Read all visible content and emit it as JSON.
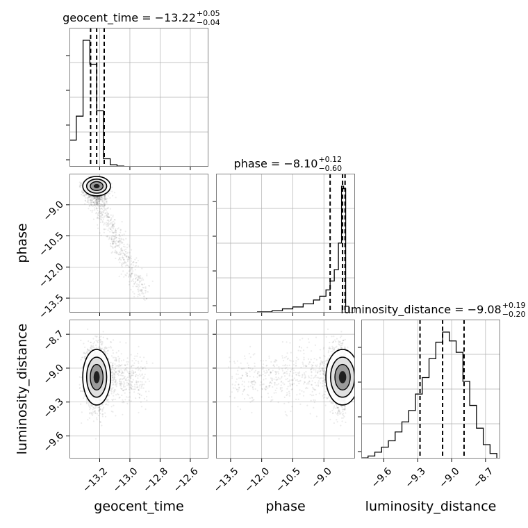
{
  "chart_data": {
    "type": "corner",
    "parameters": [
      "geocent_time",
      "phase",
      "luminosity_distance"
    ],
    "ranges": {
      "geocent_time": [
        -13.4,
        -12.48
      ],
      "phase": [
        -14.2,
        -7.5
      ],
      "luminosity_distance": [
        -9.8,
        -8.57
      ]
    },
    "ticks": {
      "geocent_time": [
        {
          "value": -13.2,
          "label": "−13.2"
        },
        {
          "value": -13.0,
          "label": "−13.0"
        },
        {
          "value": -12.8,
          "label": "−12.8"
        },
        {
          "value": -12.6,
          "label": "−12.6"
        }
      ],
      "phase": [
        {
          "value": -13.5,
          "label": "−13.5"
        },
        {
          "value": -12.0,
          "label": "−12.0"
        },
        {
          "value": -10.5,
          "label": "−10.5"
        },
        {
          "value": -9.0,
          "label": "−9.0"
        }
      ],
      "luminosity_distance": [
        {
          "value": -9.6,
          "label": "−9.6"
        },
        {
          "value": -9.3,
          "label": "−9.3"
        },
        {
          "value": -9.0,
          "label": "−9.0"
        },
        {
          "value": -8.7,
          "label": "−8.7"
        }
      ]
    },
    "axis_labels": {
      "geocent_time": "geocent_time",
      "phase": "phase",
      "luminosity_distance": "luminosity_distance"
    },
    "titles": [
      {
        "param": "geocent_time",
        "name": "geocent_time",
        "value": "−13.22",
        "plus": "+0.05",
        "minus": "−0.04"
      },
      {
        "param": "phase",
        "name": "phase",
        "value": "−8.10",
        "plus": "+0.12",
        "minus": "−0.60"
      },
      {
        "param": "luminosity_distance",
        "name": "luminosity_distance",
        "value": "−9.08",
        "plus": "+0.19",
        "minus": "−0.20"
      }
    ],
    "quantiles": {
      "geocent_time": [
        -13.26,
        -13.22,
        -13.17
      ],
      "phase": [
        -8.7,
        -8.1,
        -7.98
      ],
      "luminosity_distance": [
        -9.28,
        -9.08,
        -8.89
      ]
    },
    "histograms": {
      "geocent_time": {
        "edges": [
          -13.4,
          -13.355,
          -13.31,
          -13.265,
          -13.22,
          -13.175,
          -13.13,
          -13.085,
          -13.04,
          -12.995,
          -12.95
        ],
        "counts": [
          0.2,
          0.38,
          0.95,
          0.77,
          0.42,
          0.06,
          0.015,
          0.005,
          0.002,
          0.001
        ]
      },
      "phase": {
        "edges": [
          -12.2,
          -11.5,
          -11.0,
          -10.5,
          -10.0,
          -9.5,
          -9.2,
          -8.9,
          -8.7,
          -8.5,
          -8.3,
          -8.15,
          -8.05,
          -7.95,
          -7.8
        ],
        "counts": [
          0.006,
          0.015,
          0.03,
          0.045,
          0.07,
          0.1,
          0.13,
          0.18,
          0.25,
          0.34,
          0.55,
          1.0,
          0.98,
          0.05
        ]
      },
      "luminosity_distance": {
        "edges": [
          -9.8,
          -9.74,
          -9.68,
          -9.62,
          -9.56,
          -9.5,
          -9.44,
          -9.38,
          -9.32,
          -9.26,
          -9.2,
          -9.14,
          -9.08,
          -9.02,
          -8.96,
          -8.9,
          -8.84,
          -8.78,
          -8.72,
          -8.66,
          -8.6
        ],
        "counts": [
          0.005,
          0.02,
          0.05,
          0.09,
          0.14,
          0.21,
          0.29,
          0.38,
          0.51,
          0.64,
          0.79,
          0.92,
          1.0,
          0.93,
          0.84,
          0.61,
          0.42,
          0.24,
          0.11,
          0.04
        ]
      }
    },
    "grid": true
  }
}
